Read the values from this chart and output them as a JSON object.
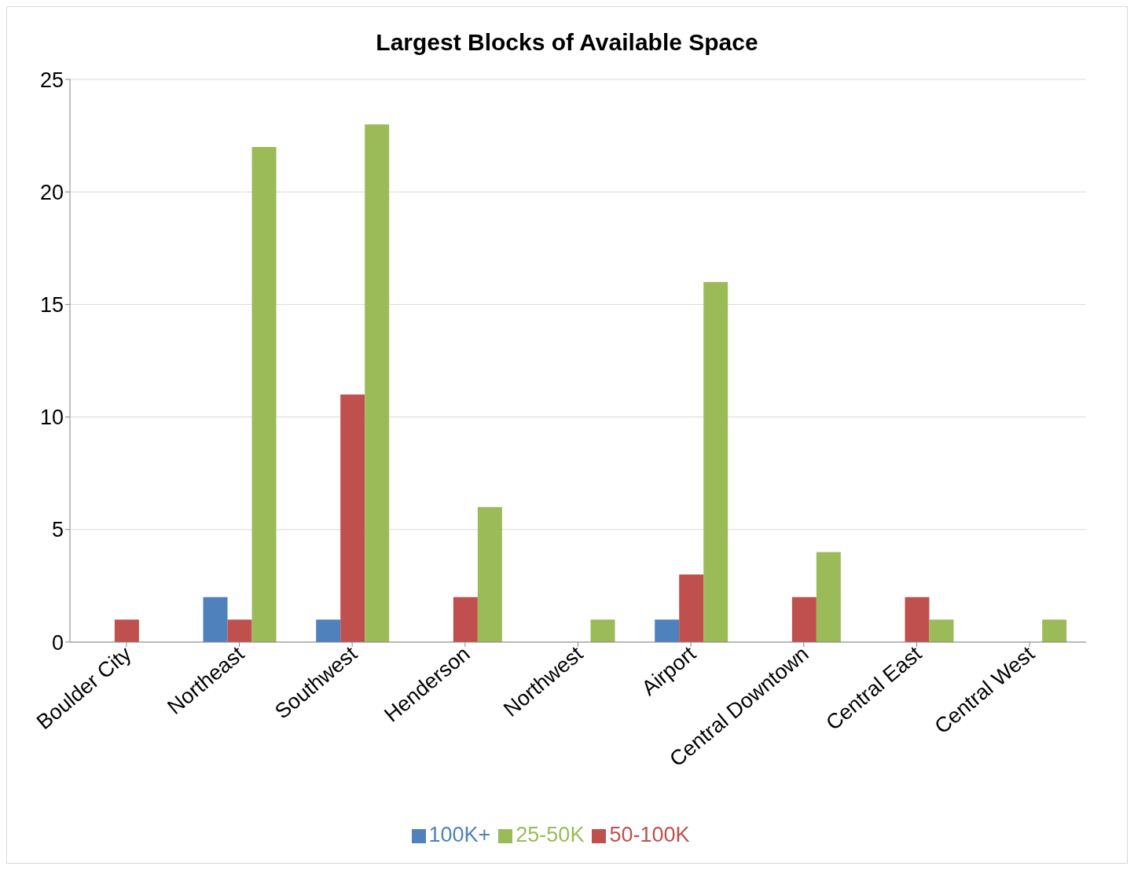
{
  "chart_data": {
    "type": "bar",
    "title": "Largest Blocks of Available Space",
    "categories": [
      "Boulder City",
      "Northeast",
      "Southwest",
      "Henderson",
      "Northwest",
      "Airport",
      "Central Downtown",
      "Central East",
      "Central West"
    ],
    "series": [
      {
        "name": "100K+",
        "color": "#4f81bd",
        "values": [
          0,
          2,
          1,
          0,
          0,
          1,
          0,
          0,
          0
        ]
      },
      {
        "name": "50-100K",
        "color": "#c0504d",
        "values": [
          1,
          1,
          11,
          2,
          0,
          3,
          2,
          2,
          0
        ]
      },
      {
        "name": "25-50K",
        "color": "#9bbb59",
        "values": [
          0,
          22,
          23,
          6,
          1,
          16,
          4,
          1,
          1
        ]
      }
    ],
    "ylim": [
      0,
      25
    ],
    "yticks": [
      0,
      5,
      10,
      15,
      20,
      25
    ],
    "grid": "y",
    "legend": "bottom"
  }
}
